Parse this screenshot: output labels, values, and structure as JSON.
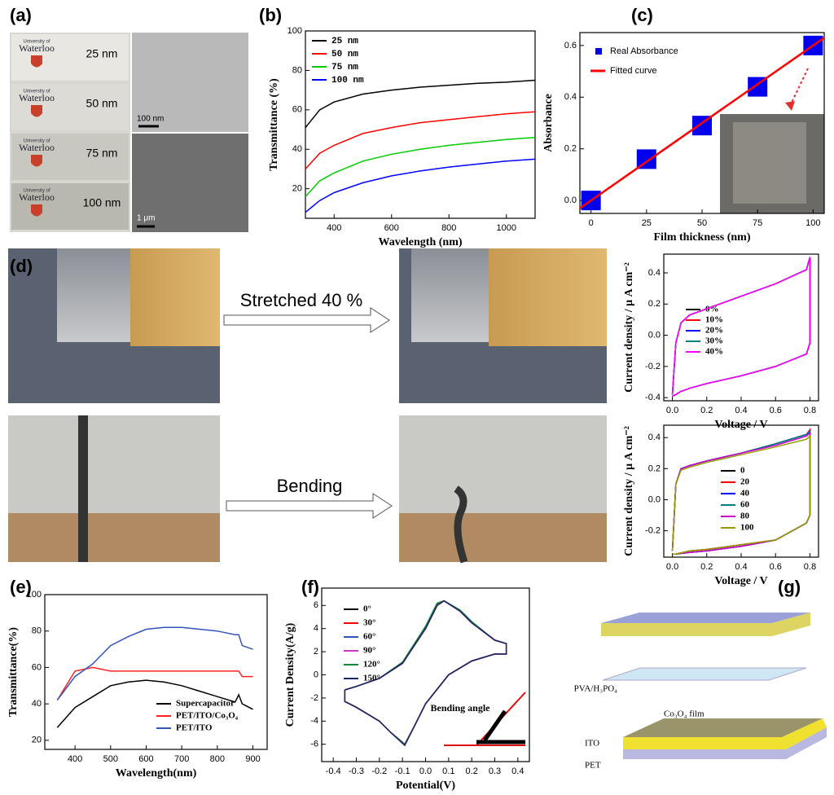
{
  "panel_labels": [
    "(a)",
    "(b)",
    "(c)",
    "(d)",
    "(e)",
    "(f)",
    "(g)"
  ],
  "panel_a": {
    "logo_caption": "University of",
    "logo": "Waterloo",
    "thicknesses": [
      "25 nm",
      "50 nm",
      "75 nm",
      "100 nm"
    ],
    "scale_bars": [
      "100 nm",
      "1 μm"
    ]
  },
  "panel_d": {
    "arrows": [
      "Stretched 40 %",
      "Bending"
    ]
  },
  "panel_g": {
    "electrolyte": "PVA/H₃PO₄",
    "film": "Co₃O₄ film",
    "ito": "ITO",
    "pet": "PET"
  },
  "chart_data": [
    {
      "type": "line",
      "xlabel": "Wavelength (nm)",
      "ylabel": "Transmittance (%)",
      "x": [
        300,
        350,
        400,
        500,
        600,
        700,
        800,
        900,
        1000,
        1100
      ],
      "xlim": [
        300,
        1100
      ],
      "xticks": [
        400,
        600,
        800,
        1000
      ],
      "ylim": [
        5,
        100
      ],
      "yticks": [
        20,
        40,
        60,
        80,
        100
      ],
      "series": [
        {
          "name": "25 nm",
          "color": "#000000",
          "values": [
            51,
            60,
            64,
            68,
            70,
            71.5,
            72.5,
            73.5,
            74,
            75
          ]
        },
        {
          "name": "50 nm",
          "color": "#ff0000",
          "values": [
            30,
            38,
            42,
            48,
            51,
            53.5,
            55,
            56.5,
            58,
            59
          ]
        },
        {
          "name": "75 nm",
          "color": "#00cc00",
          "values": [
            16,
            24,
            28,
            34,
            37.5,
            40,
            42,
            43.5,
            45,
            46
          ]
        },
        {
          "name": "100 nm",
          "color": "#0000ff",
          "values": [
            8,
            14,
            18,
            23,
            26.5,
            29,
            31,
            32.5,
            34,
            35
          ]
        }
      ]
    },
    {
      "type": "scatter",
      "xlabel": "Film thickness (nm)",
      "ylabel": "Absorbance",
      "xlim": [
        -5,
        105
      ],
      "xticks": [
        0,
        25,
        50,
        75,
        100
      ],
      "ylim": [
        -0.05,
        0.65
      ],
      "yticks": [
        {
          "value": 0,
          "label": "0.0"
        },
        0.2,
        0.4,
        0.6
      ],
      "series": [
        {
          "name": "Real Absorbance",
          "color": "#0000ee",
          "x": [
            0,
            25,
            50,
            75,
            100
          ],
          "values": [
            0.0,
            0.16,
            0.29,
            0.44,
            0.6
          ]
        }
      ],
      "fit": {
        "name": "Fitted curve",
        "color": "#ff0000",
        "x": [
          -5,
          105
        ],
        "values": [
          -0.03,
          0.63
        ]
      }
    },
    {
      "type": "line",
      "xlabel": "Voltage / V",
      "ylabel": "Current density / μ A cm⁻²",
      "x": [
        0,
        0.02,
        0.05,
        0.1,
        0.2,
        0.4,
        0.6,
        0.78,
        0.8,
        0.8,
        0.78,
        0.6,
        0.4,
        0.2,
        0.1,
        0.05,
        0.02,
        0
      ],
      "xlim": [
        -0.05,
        0.85
      ],
      "xticks": [
        {
          "value": 0,
          "label": "0.0"
        },
        0.2,
        0.4,
        0.6,
        0.8
      ],
      "ylim": [
        -0.42,
        0.52
      ],
      "yticks": [
        -0.4,
        -0.2,
        {
          "value": 0,
          "label": "0.0"
        },
        0.2,
        0.4
      ],
      "series": [
        {
          "name": "0%",
          "color": "#000000",
          "values": [
            -0.38,
            -0.05,
            0.08,
            0.13,
            0.17,
            0.25,
            0.33,
            0.42,
            0.5,
            -0.05,
            -0.12,
            -0.2,
            -0.26,
            -0.31,
            -0.34,
            -0.36,
            -0.38,
            -0.39
          ]
        },
        {
          "name": "10%",
          "color": "#ff0000",
          "values": [
            -0.38,
            -0.05,
            0.08,
            0.13,
            0.17,
            0.25,
            0.33,
            0.42,
            0.5,
            -0.05,
            -0.12,
            -0.2,
            -0.26,
            -0.31,
            -0.34,
            -0.36,
            -0.38,
            -0.39
          ]
        },
        {
          "name": "20%",
          "color": "#0000ff",
          "values": [
            -0.38,
            -0.05,
            0.08,
            0.13,
            0.17,
            0.25,
            0.33,
            0.42,
            0.5,
            -0.05,
            -0.12,
            -0.2,
            -0.26,
            -0.31,
            -0.34,
            -0.36,
            -0.38,
            -0.39
          ]
        },
        {
          "name": "30%",
          "color": "#008080",
          "values": [
            -0.38,
            -0.05,
            0.08,
            0.13,
            0.17,
            0.25,
            0.33,
            0.42,
            0.5,
            -0.05,
            -0.12,
            -0.2,
            -0.26,
            -0.31,
            -0.34,
            -0.36,
            -0.38,
            -0.39
          ]
        },
        {
          "name": "40%",
          "color": "#ff00ff",
          "values": [
            -0.38,
            -0.05,
            0.08,
            0.13,
            0.17,
            0.25,
            0.33,
            0.42,
            0.5,
            -0.05,
            -0.12,
            -0.2,
            -0.26,
            -0.31,
            -0.34,
            -0.36,
            -0.38,
            -0.39
          ]
        }
      ]
    },
    {
      "type": "line",
      "xlabel": "Voltage / V",
      "ylabel": "Current density / μ A cm⁻²",
      "x": [
        0,
        0.02,
        0.05,
        0.1,
        0.2,
        0.4,
        0.6,
        0.78,
        0.8,
        0.8,
        0.78,
        0.6,
        0.4,
        0.2,
        0.1,
        0.02,
        0
      ],
      "xlim": [
        -0.05,
        0.85
      ],
      "xticks": [
        {
          "value": 0,
          "label": "0.0"
        },
        0.2,
        0.4,
        0.6,
        0.8
      ],
      "ylim": [
        -0.37,
        0.48
      ],
      "yticks": [
        -0.2,
        {
          "value": 0,
          "label": "0.0"
        },
        0.2,
        0.4
      ],
      "series": [
        {
          "name": "0",
          "color": "#000000",
          "values": [
            -0.33,
            0.1,
            0.2,
            0.22,
            0.25,
            0.3,
            0.36,
            0.42,
            0.45,
            -0.1,
            -0.15,
            -0.26,
            -0.29,
            -0.32,
            -0.33,
            -0.35,
            -0.35
          ]
        },
        {
          "name": "20",
          "color": "#ff0000",
          "values": [
            -0.33,
            0.1,
            0.2,
            0.22,
            0.25,
            0.3,
            0.36,
            0.42,
            0.45,
            -0.1,
            -0.15,
            -0.26,
            -0.29,
            -0.32,
            -0.33,
            -0.35,
            -0.35
          ]
        },
        {
          "name": "40",
          "color": "#0000ff",
          "values": [
            -0.33,
            0.1,
            0.2,
            0.22,
            0.25,
            0.3,
            0.36,
            0.42,
            0.44,
            -0.1,
            -0.15,
            -0.26,
            -0.3,
            -0.33,
            -0.34,
            -0.35,
            -0.35
          ]
        },
        {
          "name": "60",
          "color": "#008080",
          "values": [
            -0.33,
            0.1,
            0.2,
            0.22,
            0.25,
            0.3,
            0.36,
            0.42,
            0.44,
            -0.1,
            -0.15,
            -0.26,
            -0.3,
            -0.33,
            -0.34,
            -0.35,
            -0.35
          ]
        },
        {
          "name": "80",
          "color": "#cc00cc",
          "values": [
            -0.33,
            0.1,
            0.2,
            0.22,
            0.25,
            0.3,
            0.35,
            0.41,
            0.43,
            -0.1,
            -0.15,
            -0.26,
            -0.3,
            -0.33,
            -0.34,
            -0.35,
            -0.35
          ]
        },
        {
          "name": "100",
          "color": "#999900",
          "values": [
            -0.33,
            0.1,
            0.19,
            0.21,
            0.24,
            0.29,
            0.34,
            0.39,
            0.41,
            -0.1,
            -0.15,
            -0.26,
            -0.29,
            -0.32,
            -0.33,
            -0.35,
            -0.35
          ]
        }
      ]
    },
    {
      "type": "line",
      "xlabel": "Wavelength(nm)",
      "ylabel": "Transmittance(%)",
      "x": [
        350,
        400,
        450,
        500,
        550,
        600,
        650,
        700,
        750,
        800,
        850,
        860,
        870,
        900
      ],
      "xlim": [
        315,
        940
      ],
      "xticks": [
        400,
        500,
        600,
        700,
        800,
        900
      ],
      "ylim": [
        15,
        100
      ],
      "yticks": [
        20,
        40,
        60,
        80,
        100
      ],
      "series": [
        {
          "name": "Supercapacitor",
          "color": "#000000",
          "values": [
            27,
            38,
            44,
            50,
            52,
            53,
            52,
            50,
            47,
            44,
            41,
            45,
            40,
            37
          ]
        },
        {
          "name": "PET/ITO/Co₃O₄",
          "color": "#ff2020",
          "values": [
            42,
            58,
            60,
            58,
            58,
            58,
            58,
            58,
            58,
            58,
            58,
            58,
            55,
            55
          ]
        },
        {
          "name": "PET/ITO",
          "color": "#3355bb",
          "values": [
            42,
            55,
            62,
            72,
            77,
            81,
            82,
            82,
            81,
            80,
            78,
            78,
            72,
            70
          ]
        }
      ]
    },
    {
      "type": "line",
      "xlabel": "Potential(V)",
      "ylabel": "Current Density(A/g)",
      "annotation": "Bending angle",
      "x": [
        -0.35,
        -0.3,
        -0.2,
        -0.1,
        0,
        0.05,
        0.08,
        0.15,
        0.2,
        0.3,
        0.35,
        0.35,
        0.3,
        0.2,
        0.1,
        0,
        -0.05,
        -0.09,
        -0.15,
        -0.2,
        -0.3,
        -0.35,
        -0.35
      ],
      "xlim": [
        -0.45,
        0.45
      ],
      "xticks": [
        -0.4,
        -0.3,
        -0.2,
        -0.1,
        {
          "value": 0,
          "label": "0.0"
        },
        0.1,
        0.2,
        0.3,
        0.4
      ],
      "ylim": [
        -7.5,
        7.5
      ],
      "yticks": [
        -6,
        -4,
        -2,
        0,
        2,
        4,
        6
      ],
      "series": [
        {
          "name": "0°",
          "color": "#000000",
          "values": [
            -1.3,
            -1.0,
            -0.3,
            1,
            4,
            6,
            6.4,
            5.5,
            4.5,
            3,
            2.7,
            1.8,
            1.8,
            1.2,
            0,
            -2.5,
            -4.5,
            -6,
            -5,
            -4,
            -2.8,
            -2.3,
            -1.3
          ]
        },
        {
          "name": "30°",
          "color": "#ff0000",
          "values": [
            -1.3,
            -1.0,
            -0.3,
            1,
            4,
            6,
            6.4,
            5.5,
            4.5,
            3,
            2.7,
            1.8,
            1.8,
            1.2,
            0,
            -2.5,
            -4.5,
            -6,
            -5,
            -4,
            -2.8,
            -2.3,
            -1.3
          ]
        },
        {
          "name": "60°",
          "color": "#3050c0",
          "values": [
            -1.3,
            -1.0,
            -0.3,
            1,
            4.1,
            6.1,
            6.4,
            5.5,
            4.5,
            3,
            2.7,
            1.8,
            1.8,
            1.2,
            0,
            -2.5,
            -4.5,
            -6,
            -5,
            -4,
            -2.8,
            -2.3,
            -1.3
          ]
        },
        {
          "name": "90°",
          "color": "#cc33cc",
          "values": [
            -1.3,
            -1.0,
            -0.3,
            1,
            4,
            6,
            6.4,
            5.5,
            4.5,
            3,
            2.7,
            1.8,
            1.8,
            1.2,
            0,
            -2.5,
            -4.5,
            -6,
            -5,
            -4,
            -2.8,
            -2.3,
            -1.3
          ]
        },
        {
          "name": "120°",
          "color": "#118833",
          "values": [
            -1.3,
            -1.0,
            -0.3,
            1.1,
            4.2,
            6.2,
            6.4,
            5.6,
            4.6,
            3,
            2.7,
            1.8,
            1.8,
            1.2,
            0,
            -2.5,
            -4.5,
            -6,
            -5,
            -4,
            -2.8,
            -2.3,
            -1.3
          ]
        },
        {
          "name": "150°",
          "color": "#222266",
          "values": [
            -1.3,
            -1.0,
            -0.3,
            1,
            4,
            6,
            6.4,
            5.5,
            4.5,
            3,
            2.7,
            1.8,
            1.8,
            1.2,
            0,
            -2.5,
            -4.5,
            -6.1,
            -5,
            -4,
            -2.8,
            -2.3,
            -1.3
          ]
        }
      ]
    }
  ]
}
